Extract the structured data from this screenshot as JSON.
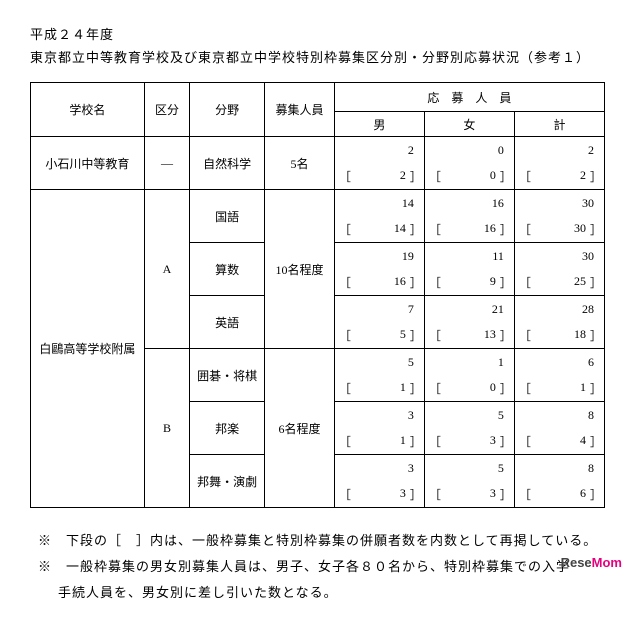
{
  "header": {
    "year": "平成２４年度",
    "title": "東京都立中等教育学校及び東京都立中学校特別枠募集区分別・分野別応募状況（参考１）"
  },
  "columns": {
    "school": "学校名",
    "kubun": "区分",
    "bunya": "分野",
    "boshu": "募集人員",
    "oubo": "応　募　人　員",
    "male": "男",
    "female": "女",
    "total": "計"
  },
  "rows": [
    {
      "school": "小石川中等教育",
      "kubun": "―",
      "bunya": "自然科学",
      "boshu": "5名",
      "male": "2",
      "female": "0",
      "total": "2",
      "bmale": "2",
      "bfemale": "0",
      "btotal": "2",
      "school_rowspan": 2,
      "kubun_rowspan": 2,
      "bunya_rowspan": 2,
      "boshu_rowspan": 2
    },
    {
      "school": "白鷗高等学校附属",
      "kubun": "A",
      "bunya": "国語",
      "boshu": "10名程度",
      "male": "14",
      "female": "16",
      "total": "30",
      "bmale": "14",
      "bfemale": "16",
      "btotal": "30",
      "school_rowspan": 12,
      "kubun_rowspan": 6,
      "bunya_rowspan": 2,
      "boshu_rowspan": 6
    },
    {
      "bunya": "算数",
      "male": "19",
      "female": "11",
      "total": "30",
      "bmale": "16",
      "bfemale": "9",
      "btotal": "25",
      "bunya_rowspan": 2
    },
    {
      "bunya": "英語",
      "male": "7",
      "female": "21",
      "total": "28",
      "bmale": "5",
      "bfemale": "13",
      "btotal": "18",
      "bunya_rowspan": 2
    },
    {
      "kubun": "B",
      "bunya": "囲碁・将棋",
      "boshu": "6名程度",
      "male": "5",
      "female": "1",
      "total": "6",
      "bmale": "1",
      "bfemale": "0",
      "btotal": "1",
      "kubun_rowspan": 6,
      "bunya_rowspan": 2,
      "boshu_rowspan": 6
    },
    {
      "bunya": "邦楽",
      "male": "3",
      "female": "5",
      "total": "8",
      "bmale": "1",
      "bfemale": "3",
      "btotal": "4",
      "bunya_rowspan": 2
    },
    {
      "bunya": "邦舞・演劇",
      "male": "3",
      "female": "5",
      "total": "8",
      "bmale": "3",
      "bfemale": "3",
      "btotal": "6",
      "bunya_rowspan": 2
    }
  ],
  "notes": {
    "n1": "※　下段の［　］内は、一般枠募集と特別枠募集の併願者数を内数として再掲している。",
    "n2": "※　一般枠募集の男女別募集人員は、男子、女子各８０名から、特別枠募集での入学",
    "n3": "手続人員を、男女別に差し引いた数となる。"
  },
  "logo": {
    "a": "Rese",
    "b": "Mom"
  }
}
